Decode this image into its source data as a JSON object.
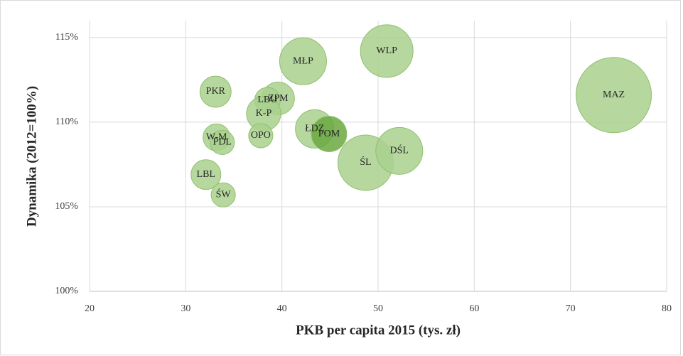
{
  "chart_data": {
    "type": "bubble",
    "xlabel": "PKB per capita  2015 (tys. zł)",
    "ylabel": "Dynamika (2012=100%)",
    "xlim": [
      20,
      80
    ],
    "xticks": [
      20,
      30,
      40,
      50,
      60,
      70,
      80
    ],
    "ylim": [
      100,
      116
    ],
    "yticks": [
      {
        "value": 100,
        "label": "100%"
      },
      {
        "value": 105,
        "label": "105%"
      },
      {
        "value": 110,
        "label": "110%"
      },
      {
        "value": 115,
        "label": "115%"
      }
    ],
    "grid": true,
    "series": [
      {
        "color": "#a9d18e",
        "labels": [
          "MAZ",
          "WLP",
          "MŁP",
          "ŚL",
          "DŚL",
          "ŁDZ",
          "POM",
          "ZPM",
          "LBU",
          "K-P",
          "OPO",
          "PKR",
          "W-M",
          "PDL",
          "LBL",
          "ŚW"
        ],
        "x": [
          74.5,
          50.9,
          42.2,
          48.7,
          52.2,
          43.4,
          44.9,
          39.6,
          38.5,
          38.1,
          37.8,
          33.1,
          33.2,
          33.8,
          32.1,
          33.9
        ],
        "values": [
          111.6,
          114.2,
          113.6,
          107.6,
          108.3,
          109.6,
          109.3,
          111.4,
          111.3,
          110.5,
          109.2,
          111.8,
          109.1,
          108.8,
          106.9,
          105.7
        ],
        "sizes": [
          281,
          137,
          109,
          152,
          109,
          73,
          62,
          53,
          32,
          58,
          29,
          48,
          36,
          29,
          44,
          29
        ],
        "colors": [
          "#a9d18e",
          "#a9d18e",
          "#a9d18e",
          "#a9d18e",
          "#a9d18e",
          "#a9d18e",
          "#6aa83f",
          "#a9d18e",
          "#a9d18e",
          "#a9d18e",
          "#a9d18e",
          "#a9d18e",
          "#a9d18e",
          "#a9d18e",
          "#a9d18e",
          "#a9d18e"
        ]
      }
    ]
  }
}
